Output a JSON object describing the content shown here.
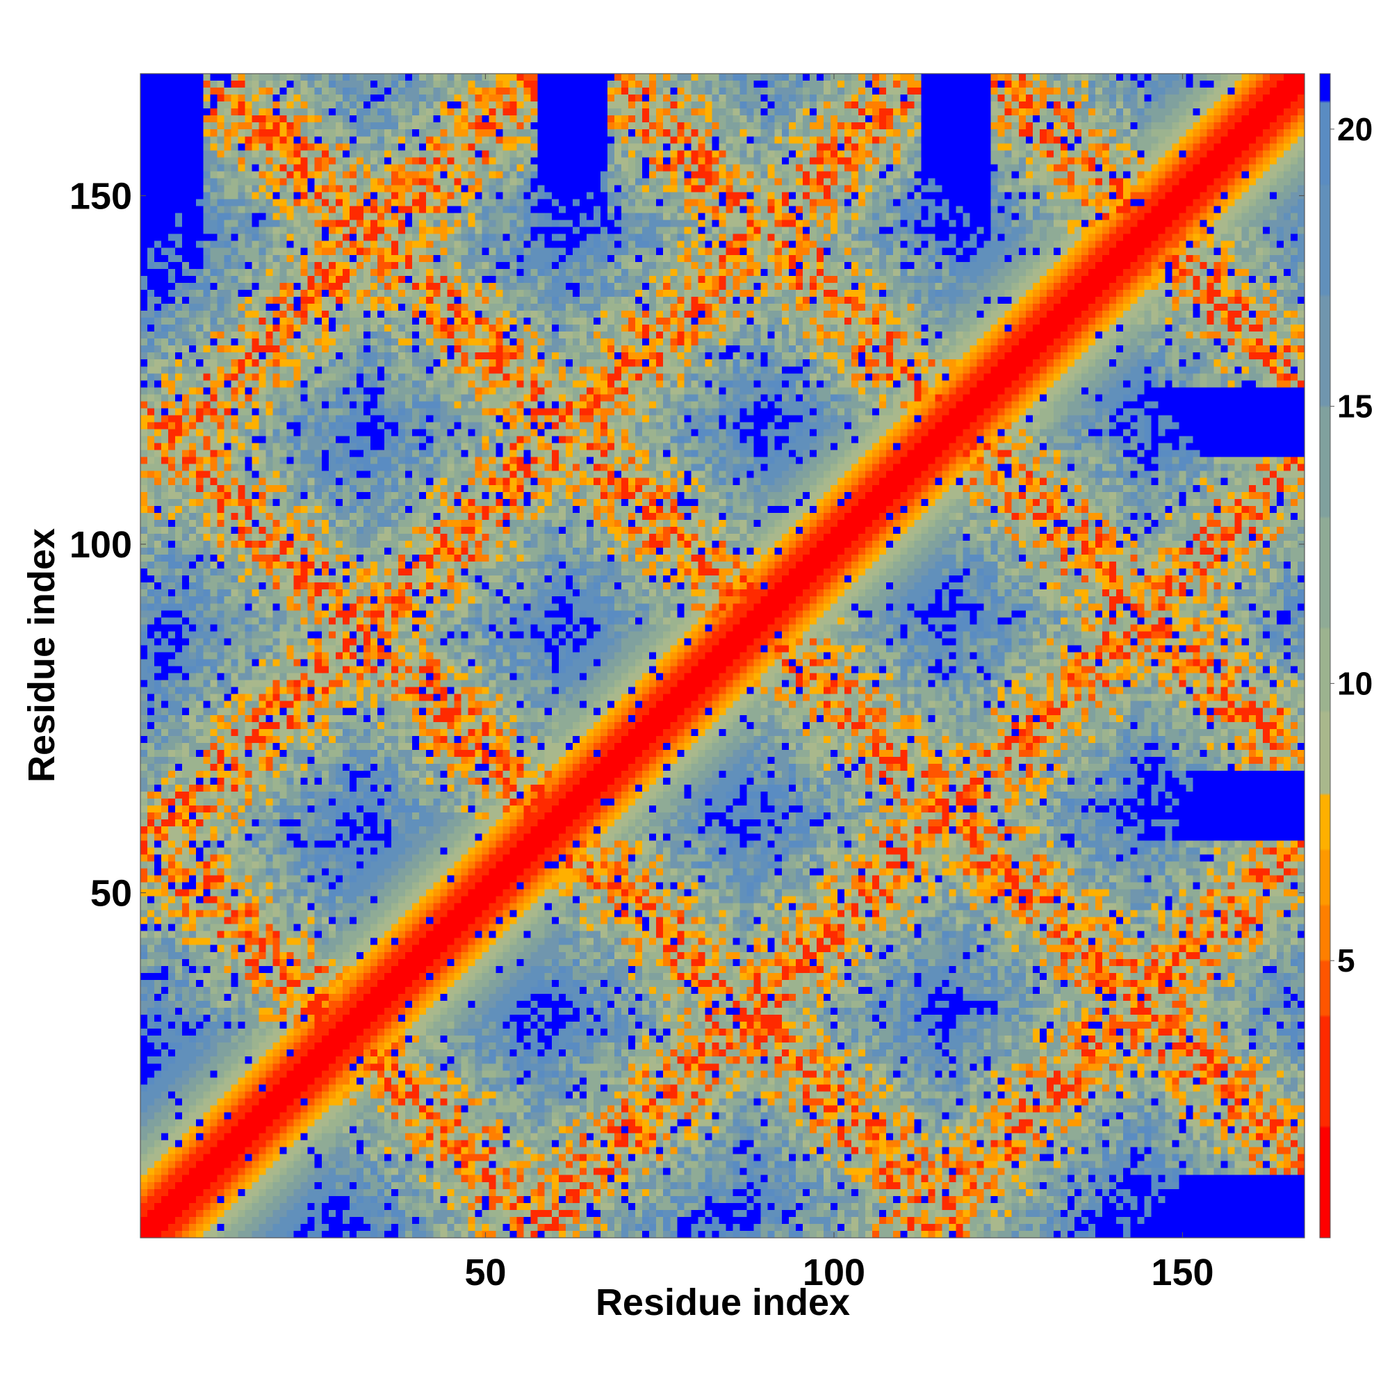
{
  "chart_data": {
    "type": "heatmap",
    "title": "",
    "xlabel": "Residue index",
    "ylabel": "Residue index",
    "n_residues": 167,
    "xlim": [
      1,
      167
    ],
    "ylim": [
      1,
      167
    ],
    "xticks": [
      50,
      100,
      150
    ],
    "yticks": [
      50,
      100,
      150
    ],
    "colorbar": {
      "range": [
        0,
        21
      ],
      "ticks": [
        5,
        10,
        15,
        20
      ],
      "colors": [
        {
          "max": 2,
          "color": "#ff0000"
        },
        {
          "max": 4,
          "color": "#ff2a00"
        },
        {
          "max": 5,
          "color": "#ff5500"
        },
        {
          "max": 6,
          "color": "#ff7f00"
        },
        {
          "max": 7,
          "color": "#ff9900"
        },
        {
          "max": 8,
          "color": "#ffb000"
        },
        {
          "max": 9.5,
          "color": "#a9b88c"
        },
        {
          "max": 11,
          "color": "#9cb38f"
        },
        {
          "max": 13,
          "color": "#8fab96"
        },
        {
          "max": 15,
          "color": "#80a19e"
        },
        {
          "max": 17,
          "color": "#7096ae"
        },
        {
          "max": 19,
          "color": "#6190bb"
        },
        {
          "max": 20.5,
          "color": "#5a8cc2"
        },
        {
          "max": 21,
          "color": "#0000ff"
        }
      ]
    },
    "description_of_values": "Pairwise residue distance map; values near 0 along the main diagonal, contact bands along diagonals and anti-diagonals, values above 20 (saturated) elsewhere",
    "diagonal": {
      "value": 0
    },
    "bands": [
      {
        "kind": "anti-diagonal",
        "sum": 60,
        "extent": [
          1,
          60
        ]
      },
      {
        "kind": "anti-diagonal",
        "sum": 120,
        "extent": [
          1,
          120
        ]
      },
      {
        "kind": "anti-diagonal",
        "sum": 178,
        "extent": [
          10,
          167
        ]
      },
      {
        "kind": "anti-diagonal",
        "sum": 235,
        "extent": [
          68,
          167
        ]
      },
      {
        "kind": "anti-diagonal",
        "sum": 290,
        "extent": [
          123,
          167
        ]
      },
      {
        "kind": "diagonal",
        "offset": 55,
        "extent": [
          1,
          112
        ]
      },
      {
        "kind": "diagonal",
        "offset": -55,
        "extent": [
          1,
          112
        ]
      },
      {
        "kind": "diagonal",
        "offset": 110,
        "extent": [
          1,
          57
        ]
      },
      {
        "kind": "diagonal",
        "offset": -110,
        "extent": [
          1,
          57
        ]
      }
    ]
  }
}
